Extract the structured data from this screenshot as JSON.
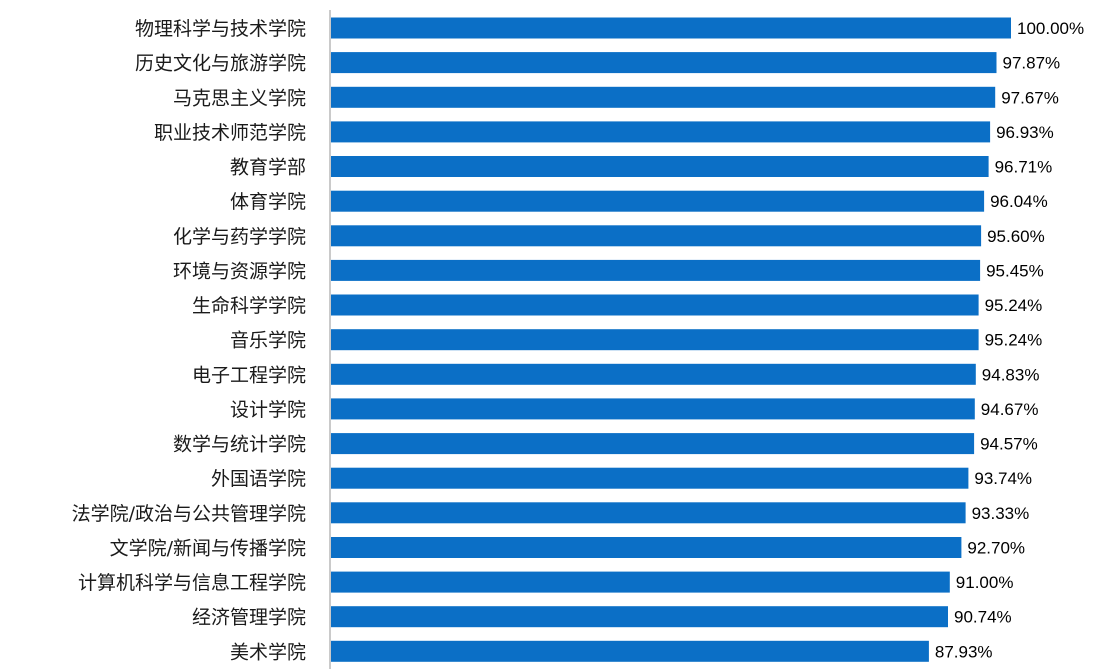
{
  "chart_data": {
    "type": "bar",
    "orientation": "horizontal",
    "categories": [
      "物理科学与技术学院",
      "历史文化与旅游学院",
      "马克思主义学院",
      "职业技术师范学院",
      "教育学部",
      "体育学院",
      "化学与药学学院",
      "环境与资源学院",
      "生命科学学院",
      "音乐学院",
      "电子工程学院",
      "设计学院",
      "数学与统计学院",
      "外国语学院",
      "法学院/政治与公共管理学院",
      "文学院/新闻与传播学院",
      "计算机科学与信息工程学院",
      "经济管理学院",
      "美术学院"
    ],
    "values": [
      100.0,
      97.87,
      97.67,
      96.93,
      96.71,
      96.04,
      95.6,
      95.45,
      95.24,
      95.24,
      94.83,
      94.67,
      94.57,
      93.74,
      93.33,
      92.7,
      91.0,
      90.74,
      87.93
    ],
    "data_labels": [
      "100.00%",
      "97.87%",
      "97.67%",
      "96.93%",
      "96.71%",
      "96.04%",
      "95.60%",
      "95.45%",
      "95.24%",
      "95.24%",
      "94.83%",
      "94.67%",
      "94.57%",
      "93.74%",
      "93.33%",
      "92.70%",
      "91.00%",
      "90.74%",
      "87.93%"
    ],
    "xlim": [
      0,
      100
    ],
    "axis": "left vertical line, no ticks",
    "grid": false,
    "legend": "none",
    "bar_color": "#0B6FC6",
    "title": "",
    "xlabel": "",
    "ylabel": ""
  }
}
